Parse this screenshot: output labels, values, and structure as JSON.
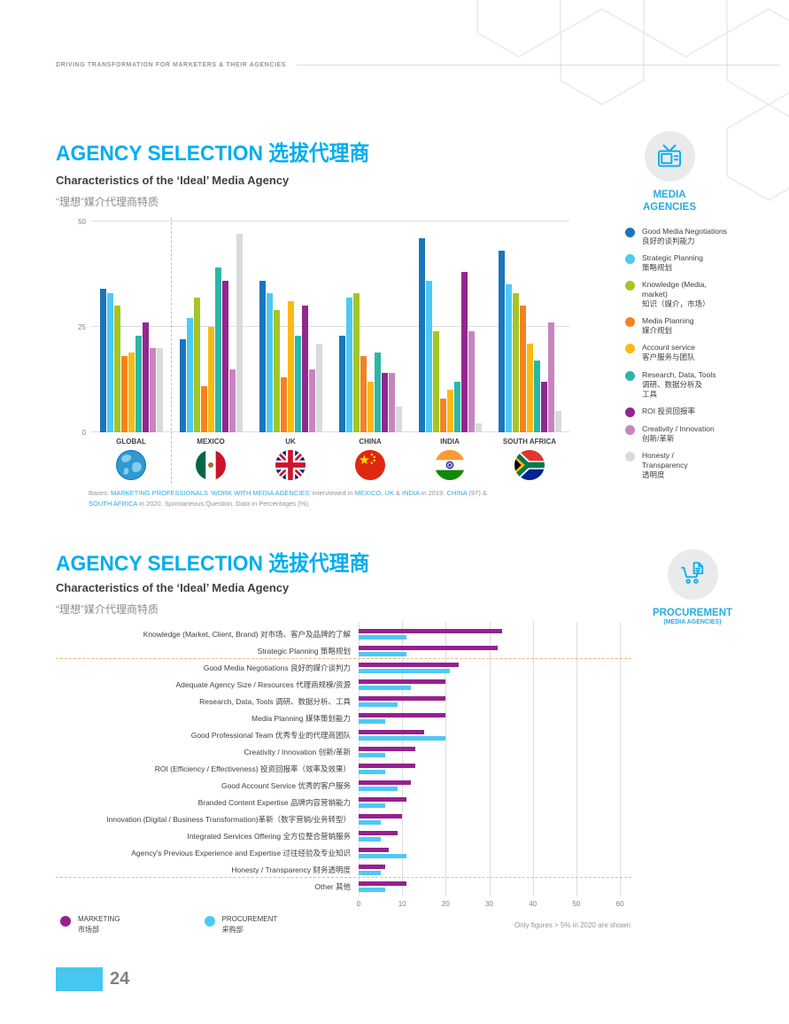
{
  "colors": {
    "accent": "#00AEEF",
    "badge_text": "#29ABE2",
    "marketing": "#96218E",
    "procurement": "#4EC9F5",
    "grid": "#DCDDDE"
  },
  "header": {
    "tagline": "DRIVING TRANSFORMATION FOR MARKETERS & THEIR AGENCIES"
  },
  "section1": {
    "title": "AGENCY SELECTION 选拔代理商",
    "subtitle_en": "Characteristics of the ‘Ideal’ Media Agency",
    "subtitle_zh": "“理想”媒介代理商特质",
    "badge": {
      "line1": "MEDIA",
      "line2": "AGENCIES",
      "icon": "tv-icon"
    },
    "legend": [
      {
        "label": "Good Media Negotiations\n良好的谈判能力",
        "color": "#1B75BB"
      },
      {
        "label": "Strategic Planning\n策略规划",
        "color": "#4EC9F5"
      },
      {
        "label": "Knowledge (Media,\nmarket)\n知识（媒介，市场）",
        "color": "#A3C626"
      },
      {
        "label": "Media Planning\n媒介规划",
        "color": "#F58220"
      },
      {
        "label": "Account service\n客户服务与团队",
        "color": "#FDB913"
      },
      {
        "label": "Research, Data, Tools\n调研、数据分析及\n工具",
        "color": "#2BB6A8"
      },
      {
        "label": "ROI 投资回报率",
        "color": "#92278F"
      },
      {
        "label": "Creativity / Innovation\n创新/革新",
        "color": "#C884BE"
      },
      {
        "label": "Honesty /\nTransparency\n透明度",
        "color": "#D9DADB"
      }
    ],
    "bases": [
      {
        "t": "Bases: ",
        "hl": false
      },
      {
        "t": "MARKETING PROFESSIONALS",
        "hl": true
      },
      {
        "t": " ",
        "hl": false
      },
      {
        "t": "‘WORK WITH MEDIA AGENCIES’",
        "hl": true
      },
      {
        "t": " interviewed in ",
        "hl": false
      },
      {
        "t": "MEXICO",
        "hl": true
      },
      {
        "t": ", ",
        "hl": false
      },
      {
        "t": "UK",
        "hl": true
      },
      {
        "t": " & ",
        "hl": false
      },
      {
        "t": "INDIA",
        "hl": true
      },
      {
        "t": " in 2019. ",
        "hl": false
      },
      {
        "t": "CHINA",
        "hl": true
      },
      {
        "t": " (97) & ",
        "hl": false
      },
      {
        "t": "SOUTH AFRICA",
        "hl": true
      },
      {
        "t": " in 2020. Spontaneous Question. Data in Percentages (%).",
        "hl": false
      }
    ]
  },
  "section2": {
    "title": "AGENCY SELECTION 选拔代理商",
    "subtitle_en": "Characteristics of the ‘Ideal’ Media Agency",
    "subtitle_zh": "“理想”媒介代理商特质",
    "badge": {
      "line1": "PROCUREMENT",
      "line2": "(MEDIA AGENCIES)",
      "icon": "cart-icon"
    },
    "legend": [
      {
        "label": "MARKETING\n市场部",
        "color": "#96218E"
      },
      {
        "label": "PROCUREMENT\n采购部",
        "color": "#4EC9F5"
      }
    ],
    "note": "Only figures > 5% in 2020 are shown"
  },
  "chart_data": [
    {
      "type": "bar",
      "title": "Characteristics of the ‘Ideal’ Media Agency “理想”媒介代理商特质",
      "ylabel": "Percent (%)",
      "ylim": [
        0,
        50
      ],
      "yticks": [
        0,
        25,
        50
      ],
      "categories": [
        "GLOBAL",
        "MEXICO",
        "UK",
        "CHINA",
        "INDIA",
        "SOUTH AFRICA"
      ],
      "flags": [
        "globe-flag",
        "mexico-flag",
        "uk-flag",
        "china-flag",
        "india-flag",
        "south-africa-flag"
      ],
      "series": [
        {
          "name": "Good Media Negotiations 良好的谈判能力",
          "color": "#1B75BB",
          "values": [
            34,
            22,
            36,
            23,
            46,
            43
          ]
        },
        {
          "name": "Strategic Planning 策略规划",
          "color": "#4EC9F5",
          "values": [
            33,
            27,
            33,
            32,
            36,
            35
          ]
        },
        {
          "name": "Knowledge (Media, market) 知识（媒介，市场）",
          "color": "#A3C626",
          "values": [
            30,
            32,
            29,
            33,
            24,
            33
          ]
        },
        {
          "name": "Media Planning 媒介规划",
          "color": "#F58220",
          "values": [
            18,
            11,
            13,
            18,
            8,
            30
          ]
        },
        {
          "name": "Account service 客户服务与团队",
          "color": "#FDB913",
          "values": [
            19,
            25,
            31,
            12,
            10,
            21
          ]
        },
        {
          "name": "Research, Data, Tools 调研、数据分析及工具",
          "color": "#2BB6A8",
          "values": [
            23,
            39,
            23,
            19,
            12,
            17
          ]
        },
        {
          "name": "ROI 投资回报率",
          "color": "#92278F",
          "values": [
            26,
            36,
            30,
            14,
            38,
            12
          ]
        },
        {
          "name": "Creativity / Innovation 创新/革新",
          "color": "#C884BE",
          "values": [
            20,
            15,
            15,
            14,
            24,
            26
          ]
        },
        {
          "name": "Honesty / Transparency 透明度",
          "color": "#D9DADB",
          "values": [
            20,
            47,
            21,
            6,
            2,
            5
          ]
        }
      ]
    },
    {
      "type": "bar",
      "orientation": "horizontal",
      "xlim": [
        0,
        60
      ],
      "xticks": [
        0,
        10,
        20,
        30,
        40,
        50,
        60
      ],
      "series_names": [
        "MARKETING 市场部",
        "PROCUREMENT 采购部"
      ],
      "rows": [
        {
          "label": "Knowledge (Market, Client, Brand) 对市场、客户及品牌的了解",
          "marketing": 33,
          "procurement": 11
        },
        {
          "label": "Strategic Planning 策略规划",
          "marketing": 32,
          "procurement": 11
        },
        {
          "label": "Good Media Negotiations 良好的媒介谈判力",
          "marketing": 23,
          "procurement": 21
        },
        {
          "label": "Adequate Agency Size / Resources 代理商规模/资源",
          "marketing": 20,
          "procurement": 12
        },
        {
          "label": "Research, Data, Tools 调研、数据分析、工具",
          "marketing": 20,
          "procurement": 9
        },
        {
          "label": "Media Planning 媒体策划能力",
          "marketing": 20,
          "procurement": 6
        },
        {
          "label": "Good Professional Team 优秀专业的代理商团队",
          "marketing": 15,
          "procurement": 20
        },
        {
          "label": "Creativity / Innovation 创新/革新",
          "marketing": 13,
          "procurement": 6
        },
        {
          "label": "ROI (Efficiency / Effectiveness) 投资回报率（效率及效果）",
          "marketing": 13,
          "procurement": 6
        },
        {
          "label": "Good Account Service 优秀的客户服务",
          "marketing": 12,
          "procurement": 9
        },
        {
          "label": "Branded Content Expertise 品牌内容营销能力",
          "marketing": 11,
          "procurement": 6
        },
        {
          "label": "Innovation (Digital / Business Transformation)革新（数字营销/业务转型）",
          "marketing": 10,
          "procurement": 5
        },
        {
          "label": "Integrated Services Offering 全方位整合营销服务",
          "marketing": 9,
          "procurement": 5
        },
        {
          "label": "Agency's Previous Experience and Expertise 过往经验及专业知识",
          "marketing": 7,
          "procurement": 11
        },
        {
          "label": "Honesty / Transparency 财务透明度",
          "marketing": 6,
          "procurement": 5
        },
        {
          "label": "Other 其他",
          "marketing": 11,
          "procurement": 6
        }
      ],
      "separators_after_rows": [
        1,
        14
      ]
    }
  ],
  "footer": {
    "page_number": "24"
  }
}
